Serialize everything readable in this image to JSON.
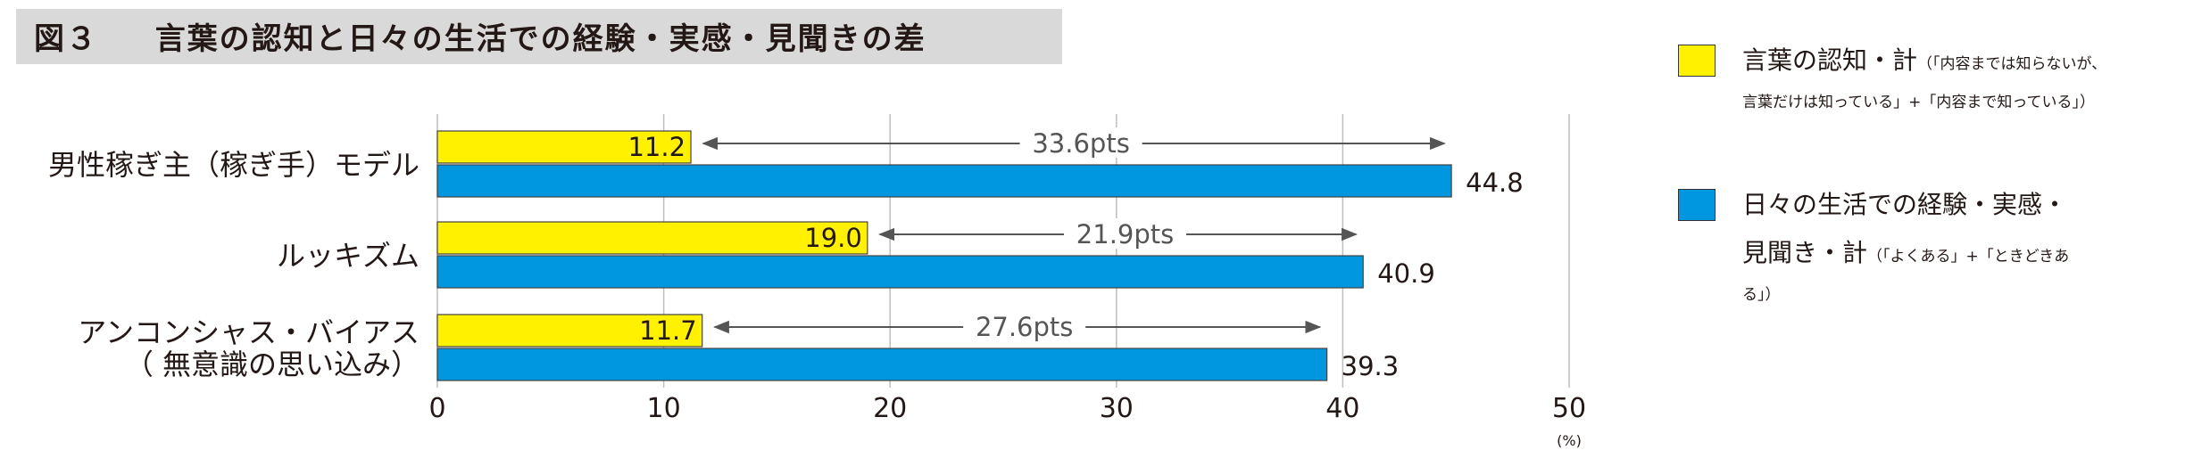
{
  "title": {
    "figure_label": "図３",
    "text": "言葉の認知と日々の生活での経験・実感・見聞きの差"
  },
  "legend": {
    "items": [
      {
        "main": "言葉の認知・計",
        "note_part1": "（「内容までは知らないが、",
        "note_part2": "言葉だけは知っている」+「内容まで知っている」）",
        "color": "#fff100"
      },
      {
        "main": "日々の生活での経験・実感・",
        "main2": "見聞き・計",
        "note_part1": "（「よくある」+「ときどきあ",
        "note_part2": "る」）",
        "color": "#0097e0"
      }
    ]
  },
  "chart_data": {
    "type": "bar",
    "orientation": "horizontal",
    "categories": [
      [
        "男性稼ぎ主（稼ぎ手）モデル"
      ],
      [
        "ルッキズム"
      ],
      [
        "アンコンシャス・バイアス",
        "（ 無意識の思い込み）"
      ]
    ],
    "series": [
      {
        "name": "言葉の認知・計",
        "color": "#fff100",
        "values": [
          11.2,
          19.0,
          11.7
        ]
      },
      {
        "name": "日々の生活での経験・実感・見聞き・計",
        "color": "#0097e0",
        "values": [
          44.8,
          40.9,
          39.3
        ]
      }
    ],
    "value_labels": [
      [
        "11.2",
        "19.0",
        "11.7"
      ],
      [
        "44.8",
        "40.9",
        "39.3"
      ]
    ],
    "differences": [
      "33.6pts",
      "21.9pts",
      "27.6pts"
    ],
    "xlim": [
      0,
      50
    ],
    "xticks": [
      "0",
      "10",
      "20",
      "30",
      "40",
      "50"
    ],
    "unit": "(%)",
    "grid": true
  }
}
